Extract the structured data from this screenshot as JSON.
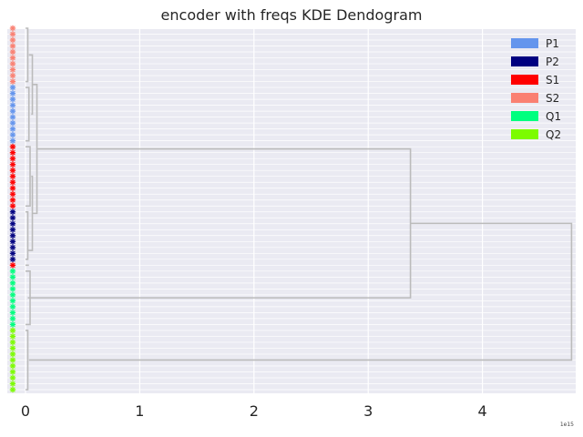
{
  "chart_data": {
    "type": "dendrogram",
    "title": "encoder with freqs KDE Dendogram",
    "orientation": "left",
    "x_ticks": [
      "0",
      "1",
      "2",
      "3",
      "4"
    ],
    "x_offset_label": "1e15",
    "xlim": [
      0,
      4.8
    ],
    "legend": {
      "placement": "top-right",
      "entries": [
        {
          "label": "P1",
          "color": "#6495ED"
        },
        {
          "label": "P2",
          "color": "#000080"
        },
        {
          "label": "S1",
          "color": "#FF0000"
        },
        {
          "label": "S2",
          "color": "#FA8072"
        },
        {
          "label": "Q1",
          "color": "#00FF7F"
        },
        {
          "label": "Q2",
          "color": "#7CFC00"
        }
      ]
    },
    "leaf_groups": [
      {
        "label": "S2",
        "color": "#FA8072",
        "count": 10
      },
      {
        "label": "P1",
        "color": "#6495ED",
        "count": 10
      },
      {
        "label": "S1",
        "color": "#FF0000",
        "count": 11
      },
      {
        "label": "P2",
        "color": "#000080",
        "count": 9
      },
      {
        "label": "S1",
        "color": "#FF0000",
        "count": 1
      },
      {
        "label": "Q1",
        "color": "#00FF7F",
        "count": 10
      },
      {
        "label": "Q2",
        "color": "#7CFC00",
        "count": 11
      }
    ],
    "links_color": "#BBBBBB",
    "top_merges": [
      {
        "left_leaf": 0,
        "right_leaf": 41,
        "height": 0.1
      },
      {
        "left_leaf": 41,
        "right_leaf": 51,
        "height": 0.02
      },
      {
        "left_leaf": 51,
        "right_leaf": 61,
        "height": 0.03
      },
      {
        "cluster": "upper",
        "with": "Q1",
        "height": 3.37
      },
      {
        "cluster": "upper+Q1",
        "with": "Q2",
        "height": 4.78
      }
    ],
    "background_grid": true
  }
}
